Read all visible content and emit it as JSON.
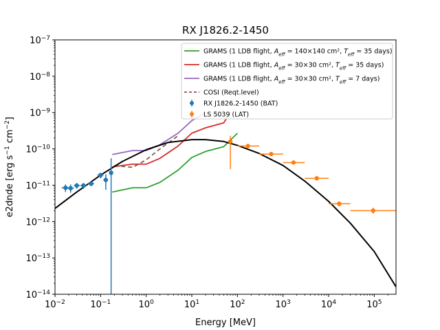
{
  "chart_data": {
    "type": "line",
    "title": "RX J1826.2-1450",
    "xlabel": "Energy [MeV]",
    "ylabel_main": "e2dnde [erg s",
    "ylabel_exp1": "−1",
    "ylabel_mid": " cm",
    "ylabel_exp2": "−2",
    "ylabel_end": "]",
    "xscale": "log",
    "yscale": "log",
    "xlim": [
      0.01,
      300000
    ],
    "ylim": [
      1e-14,
      1e-07
    ],
    "x_ticks": [
      {
        "value": 0.01,
        "base": "10",
        "exp": "−2"
      },
      {
        "value": 0.1,
        "base": "10",
        "exp": "−1"
      },
      {
        "value": 1,
        "base": "10",
        "exp": "0"
      },
      {
        "value": 10,
        "base": "10",
        "exp": "1"
      },
      {
        "value": 100,
        "base": "10",
        "exp": "2"
      },
      {
        "value": 1000,
        "base": "10",
        "exp": "3"
      },
      {
        "value": 10000,
        "base": "10",
        "exp": "4"
      },
      {
        "value": 100000,
        "base": "10",
        "exp": "5"
      }
    ],
    "y_ticks": [
      {
        "value": 1e-14,
        "base": "10",
        "exp": "−14"
      },
      {
        "value": 1e-13,
        "base": "10",
        "exp": "−13"
      },
      {
        "value": 1e-12,
        "base": "10",
        "exp": "−12"
      },
      {
        "value": 1e-11,
        "base": "10",
        "exp": "−11"
      },
      {
        "value": 1e-10,
        "base": "10",
        "exp": "−10"
      },
      {
        "value": 1e-09,
        "base": "10",
        "exp": "−9"
      },
      {
        "value": 1e-08,
        "base": "10",
        "exp": "−8"
      },
      {
        "value": 1e-07,
        "base": "10",
        "exp": "−7"
      }
    ],
    "grid": false,
    "legend_position": "top-right",
    "model_curve": {
      "color": "#000000",
      "x": [
        0.01,
        0.03,
        0.1,
        0.3,
        1,
        3,
        10,
        20,
        50,
        100,
        300,
        1000,
        3000,
        10000,
        30000,
        100000,
        300000
      ],
      "y": [
        2.3e-12,
        6.5e-12,
        1.9e-11,
        4.5e-11,
        9.5e-11,
        1.5e-10,
        1.8e-10,
        1.8e-10,
        1.6e-10,
        1.25e-10,
        7.5e-11,
        3.5e-11,
        1.3e-11,
        3.6e-12,
        9e-13,
        1.5e-13,
        1.6e-14
      ]
    },
    "series": [
      {
        "name_pre": "GRAMS (1 LDB flight, ",
        "name_math": "A",
        "name_sub": "eff",
        "name_post": " = 140×140 cm², ",
        "name_math2": "T",
        "name_sub2": "eff",
        "name_post2": " = 35 days)",
        "color": "#2ca02c",
        "dash": "",
        "x": [
          0.18,
          0.5,
          1,
          2,
          5,
          10,
          20,
          50,
          100
        ],
        "y": [
          6.5e-12,
          8.5e-12,
          8.5e-12,
          1.2e-11,
          2.6e-11,
          5.8e-11,
          8.5e-11,
          1.15e-10,
          2.7e-10
        ]
      },
      {
        "name_pre": "GRAMS (1 LDB flight, ",
        "name_math": "A",
        "name_sub": "eff",
        "name_post": " = 30×30 cm², ",
        "name_math2": "T",
        "name_sub2": "eff",
        "name_post2": " = 35 days)",
        "color": "#d62728",
        "dash": "",
        "x": [
          0.18,
          0.5,
          1,
          2,
          5,
          10,
          20,
          50,
          70
        ],
        "y": [
          3.2e-11,
          3.8e-11,
          3.8e-11,
          5.5e-11,
          1.2e-10,
          2.7e-10,
          3.8e-10,
          5.2e-10,
          1e-09
        ]
      },
      {
        "name_pre": "GRAMS (1 LDB flight, ",
        "name_math": "A",
        "name_sub": "eff",
        "name_post": " = 30×30 cm², ",
        "name_math2": "T",
        "name_sub2": "eff",
        "name_post2": " = 7 days)",
        "color": "#9467bd",
        "dash": "",
        "x": [
          0.18,
          0.5,
          1,
          2,
          5,
          10,
          20
        ],
        "y": [
          7e-11,
          9e-11,
          9e-11,
          1.3e-10,
          2.7e-10,
          6e-10,
          1e-09
        ]
      },
      {
        "name_pre": "COSI (Reqt.level)",
        "color": "#8c564b",
        "dash": "6,4",
        "x": [
          0.2,
          0.5,
          1,
          2,
          5
        ],
        "y": [
          3.5e-11,
          3.1e-11,
          5e-11,
          1e-10,
          2.3e-10
        ]
      }
    ],
    "points": [
      {
        "name": "RX J1826.2-1450 (BAT)",
        "color": "#1f77b4",
        "x": [
          0.017,
          0.022,
          0.03,
          0.042,
          0.062,
          0.1,
          0.13,
          0.17
        ],
        "y": [
          8.5e-12,
          8.3e-12,
          9.8e-12,
          9.8e-12,
          1.1e-11,
          1.9e-11,
          1.4e-11,
          2.2e-11
        ],
        "x_low": [
          0.014,
          0.019,
          0.026,
          0.036,
          0.053,
          0.085,
          0.115,
          0.165
        ],
        "x_high": [
          0.02,
          0.026,
          0.035,
          0.05,
          0.072,
          0.115,
          0.145,
          0.175
        ],
        "y_low": [
          6.5e-12,
          6.2e-12,
          8e-12,
          8e-12,
          9.5e-12,
          1.55e-11,
          7.5e-12,
          1e-14
        ],
        "y_high": [
          1.05e-11,
          1.05e-11,
          1.15e-11,
          1.15e-11,
          1.25e-11,
          2.2e-11,
          2e-11,
          5.5e-11
        ]
      },
      {
        "name": "LS 5039 (LAT)",
        "color": "#ff7f0e",
        "x": [
          70,
          170,
          550,
          1700,
          5500,
          17000,
          95000
        ],
        "y": [
          1.6e-10,
          1.2e-10,
          7.2e-11,
          4.2e-11,
          1.55e-11,
          3.1e-12,
          2e-12
        ],
        "x_low": [
          70,
          100,
          300,
          1000,
          3000,
          10000,
          30000
        ],
        "x_high": [
          70,
          300,
          1000,
          3000,
          10000,
          30000,
          300000
        ],
        "y_low": [
          2.8e-11,
          1.05e-10,
          6.5e-11,
          3.8e-11,
          1.35e-11,
          2.6e-12,
          1.65e-12
        ],
        "y_high": [
          2.3e-10,
          1.35e-10,
          8e-11,
          4.7e-11,
          1.75e-11,
          3.6e-12,
          2.4e-12
        ]
      }
    ]
  }
}
